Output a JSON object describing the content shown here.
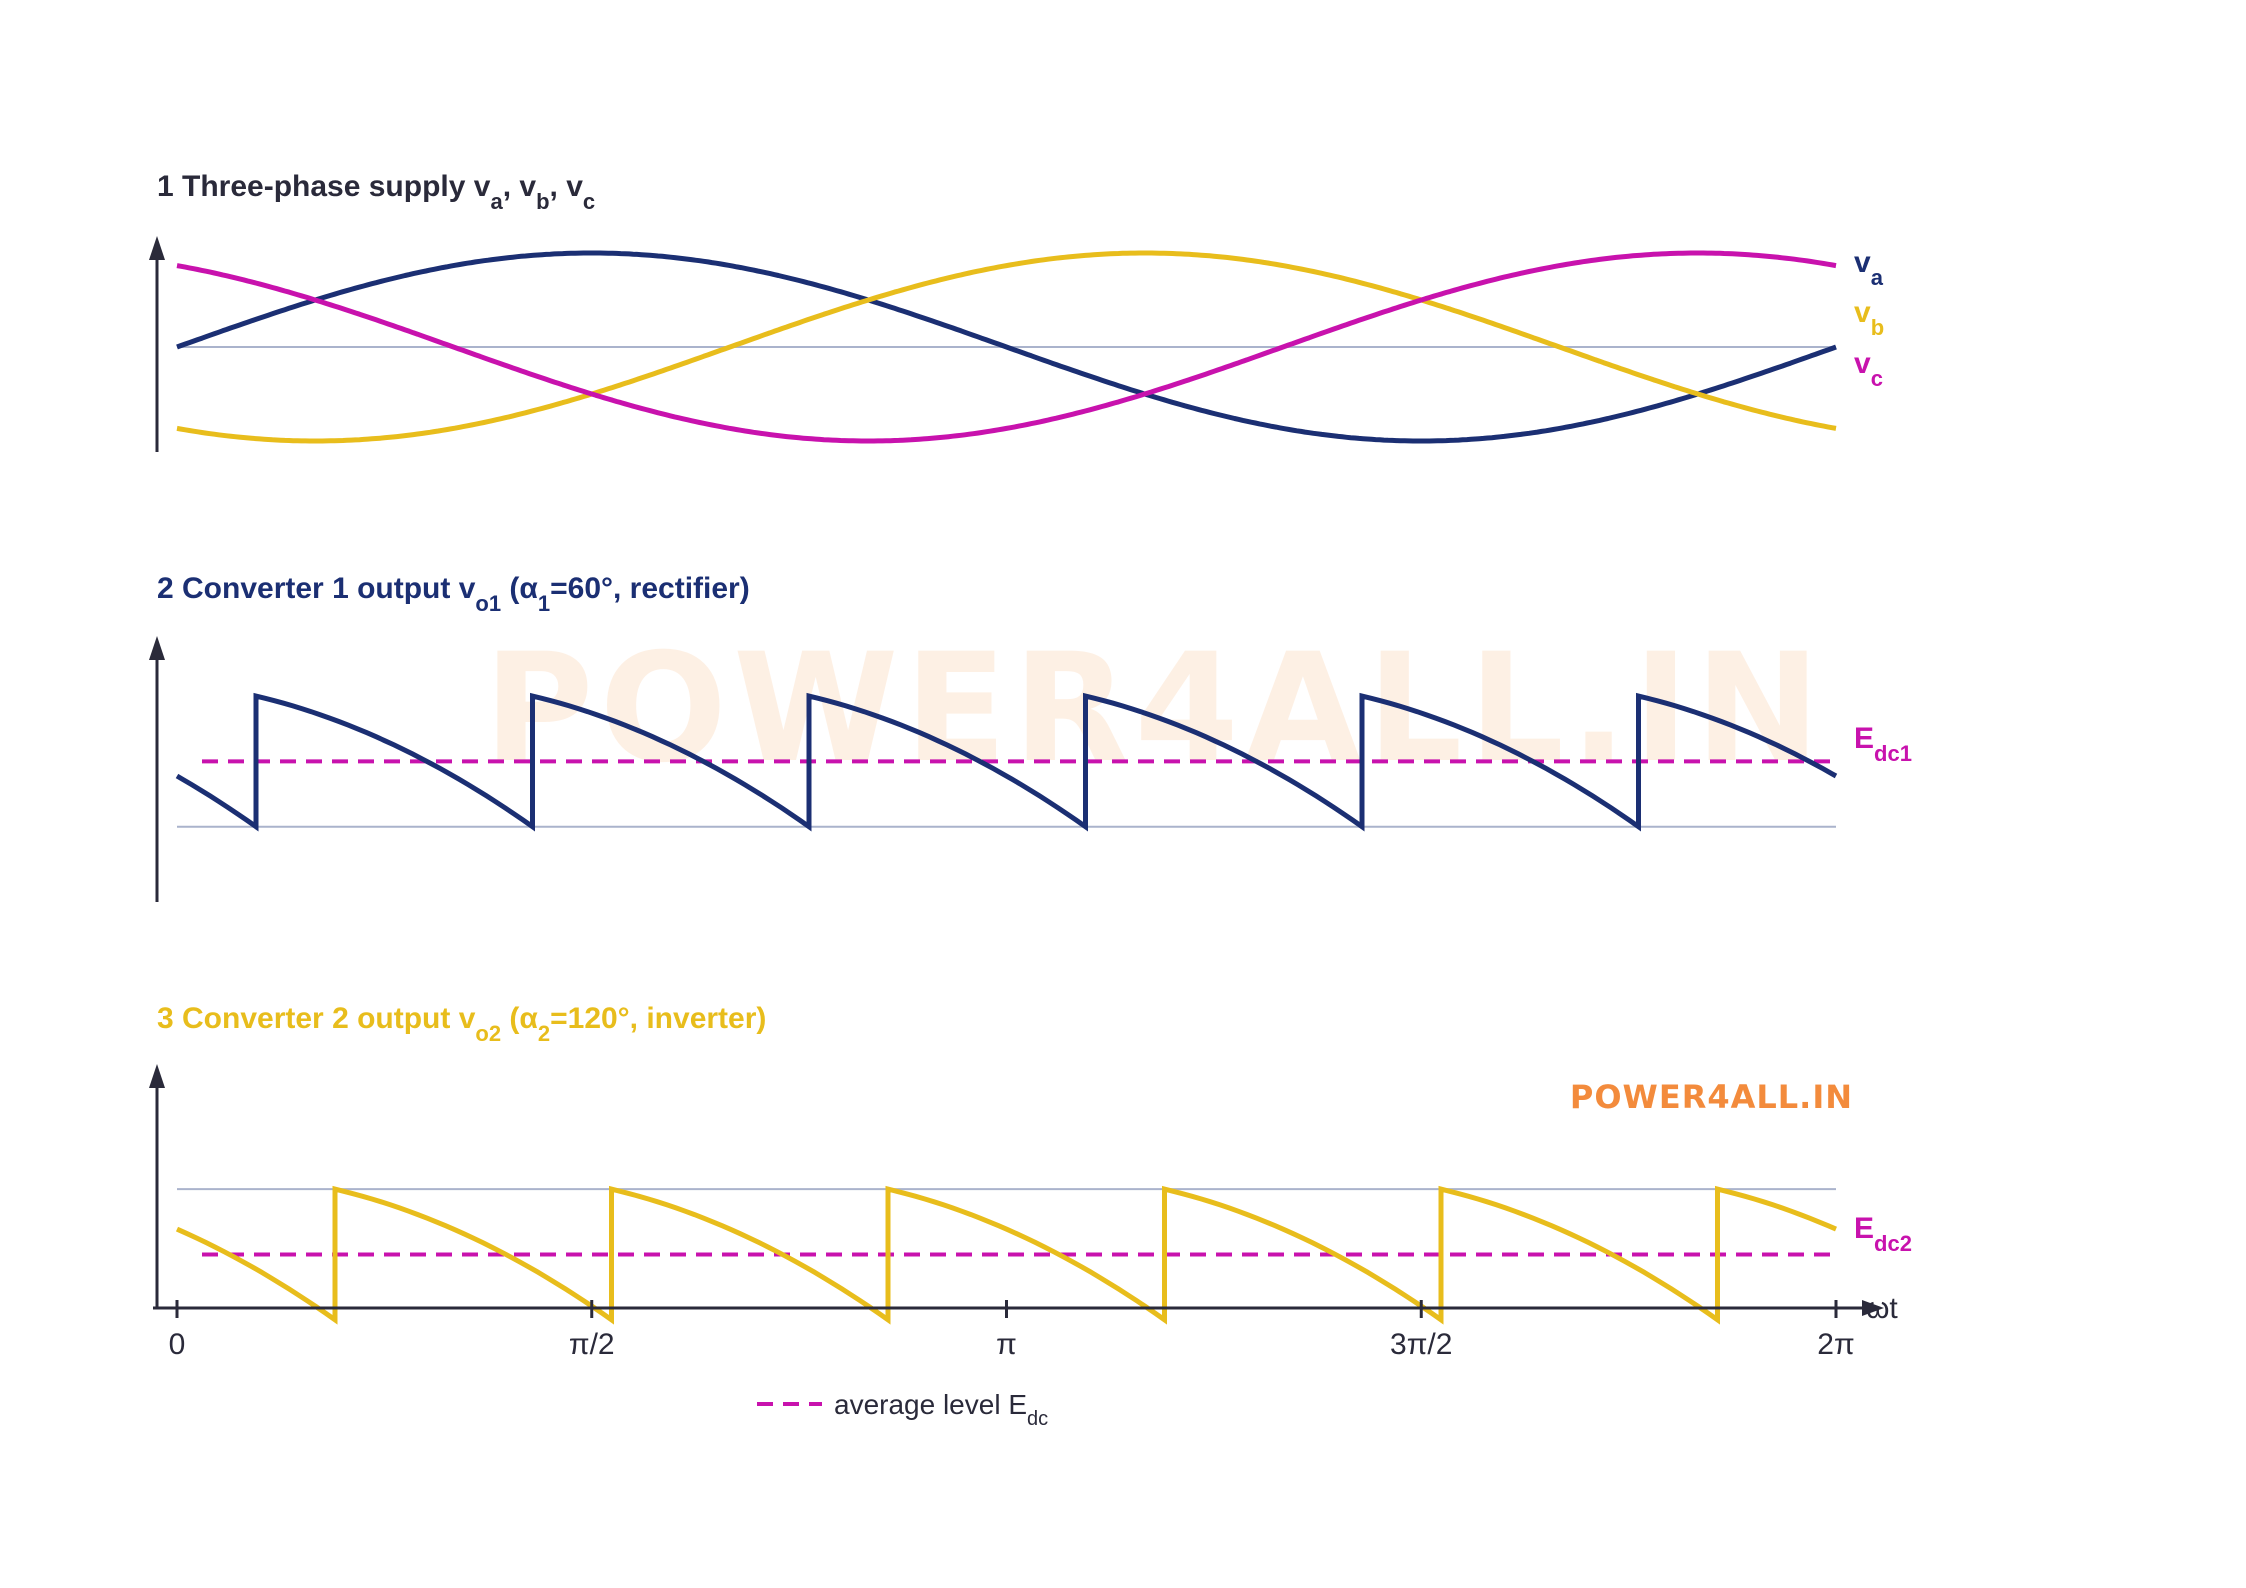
{
  "colors": {
    "va": "#1b2f73",
    "vb": "#e8bd1c",
    "vc": "#c812ad",
    "average": "#c812ad",
    "axis": "#2a2a3a",
    "reference": "#aab3cc",
    "title1": "#2a2a3a",
    "title2": "#1b2f73",
    "title3": "#e8bd1c",
    "watermark": "#f38b3c"
  },
  "watermark": {
    "large": "POWER4ALL.IN",
    "small": "POWER4ALL.IN"
  },
  "chart_data": [
    {
      "type": "line",
      "title": {
        "num": "1",
        "text": "Three-phase supply",
        "vars": [
          {
            "base": "v",
            "sub": "a",
            "sep": ", "
          },
          {
            "base": "v",
            "sub": "b",
            "sep": ", "
          },
          {
            "base": "v",
            "sub": "c",
            "sep": ""
          }
        ]
      },
      "x_range_rad": [
        0,
        6.2832
      ],
      "y_range": [
        -1.1,
        1.1
      ],
      "series": [
        {
          "base": "v",
          "sub": "a",
          "color": "#1b2f73",
          "phase_deg": 0
        },
        {
          "base": "v",
          "sub": "b",
          "color": "#e8bd1c",
          "phase_deg": -120
        },
        {
          "base": "v",
          "sub": "c",
          "color": "#c812ad",
          "phase_deg": 120
        }
      ],
      "reference_line": 0
    },
    {
      "type": "line",
      "title": {
        "num": "2",
        "text": "Converter 1 output",
        "vbase": "v",
        "vsub": "o1",
        "p_open": "(α",
        "alpha_sub": "1",
        "p_rest": "=60°, rectifier)"
      },
      "firing_angle_deg": 60,
      "mode": "rectifier",
      "x_range_rad": [
        0,
        6.2832
      ],
      "y_range": [
        -0.5,
        1.1
      ],
      "waveform": {
        "pulses": 6,
        "pulse_start_value": 1.0,
        "pulse_end_value": 0.0
      },
      "reference_line": 0,
      "average": {
        "value": 0.5,
        "base": "E",
        "sub": "dc1"
      }
    },
    {
      "type": "line",
      "title": {
        "num": "3",
        "text": "Converter 2 output",
        "vbase": "v",
        "vsub": "o2",
        "p_open": "(α",
        "alpha_sub": "2",
        "p_rest": "=120°, inverter)"
      },
      "firing_angle_deg": 120,
      "mode": "inverter",
      "x_range_rad": [
        0,
        6.2832
      ],
      "y_range": [
        -1.4,
        0.2
      ],
      "waveform": {
        "pulses": 6,
        "pulse_start_value": 0.0,
        "pulse_end_value": -1.0
      },
      "reference_line": 0,
      "average": {
        "value": -0.5,
        "base": "E",
        "sub": "dc2"
      }
    }
  ],
  "x_axis": {
    "label": "ωt",
    "ticks": [
      {
        "value": 0,
        "label": "0"
      },
      {
        "value": 1.5708,
        "label": "π/2"
      },
      {
        "value": 3.1416,
        "label": "π"
      },
      {
        "value": 4.7124,
        "label": "3π/2"
      },
      {
        "value": 6.2832,
        "label": "2π"
      }
    ]
  },
  "legend": {
    "text": "average level E",
    "sub": "dc",
    "position": "bottom-center"
  }
}
